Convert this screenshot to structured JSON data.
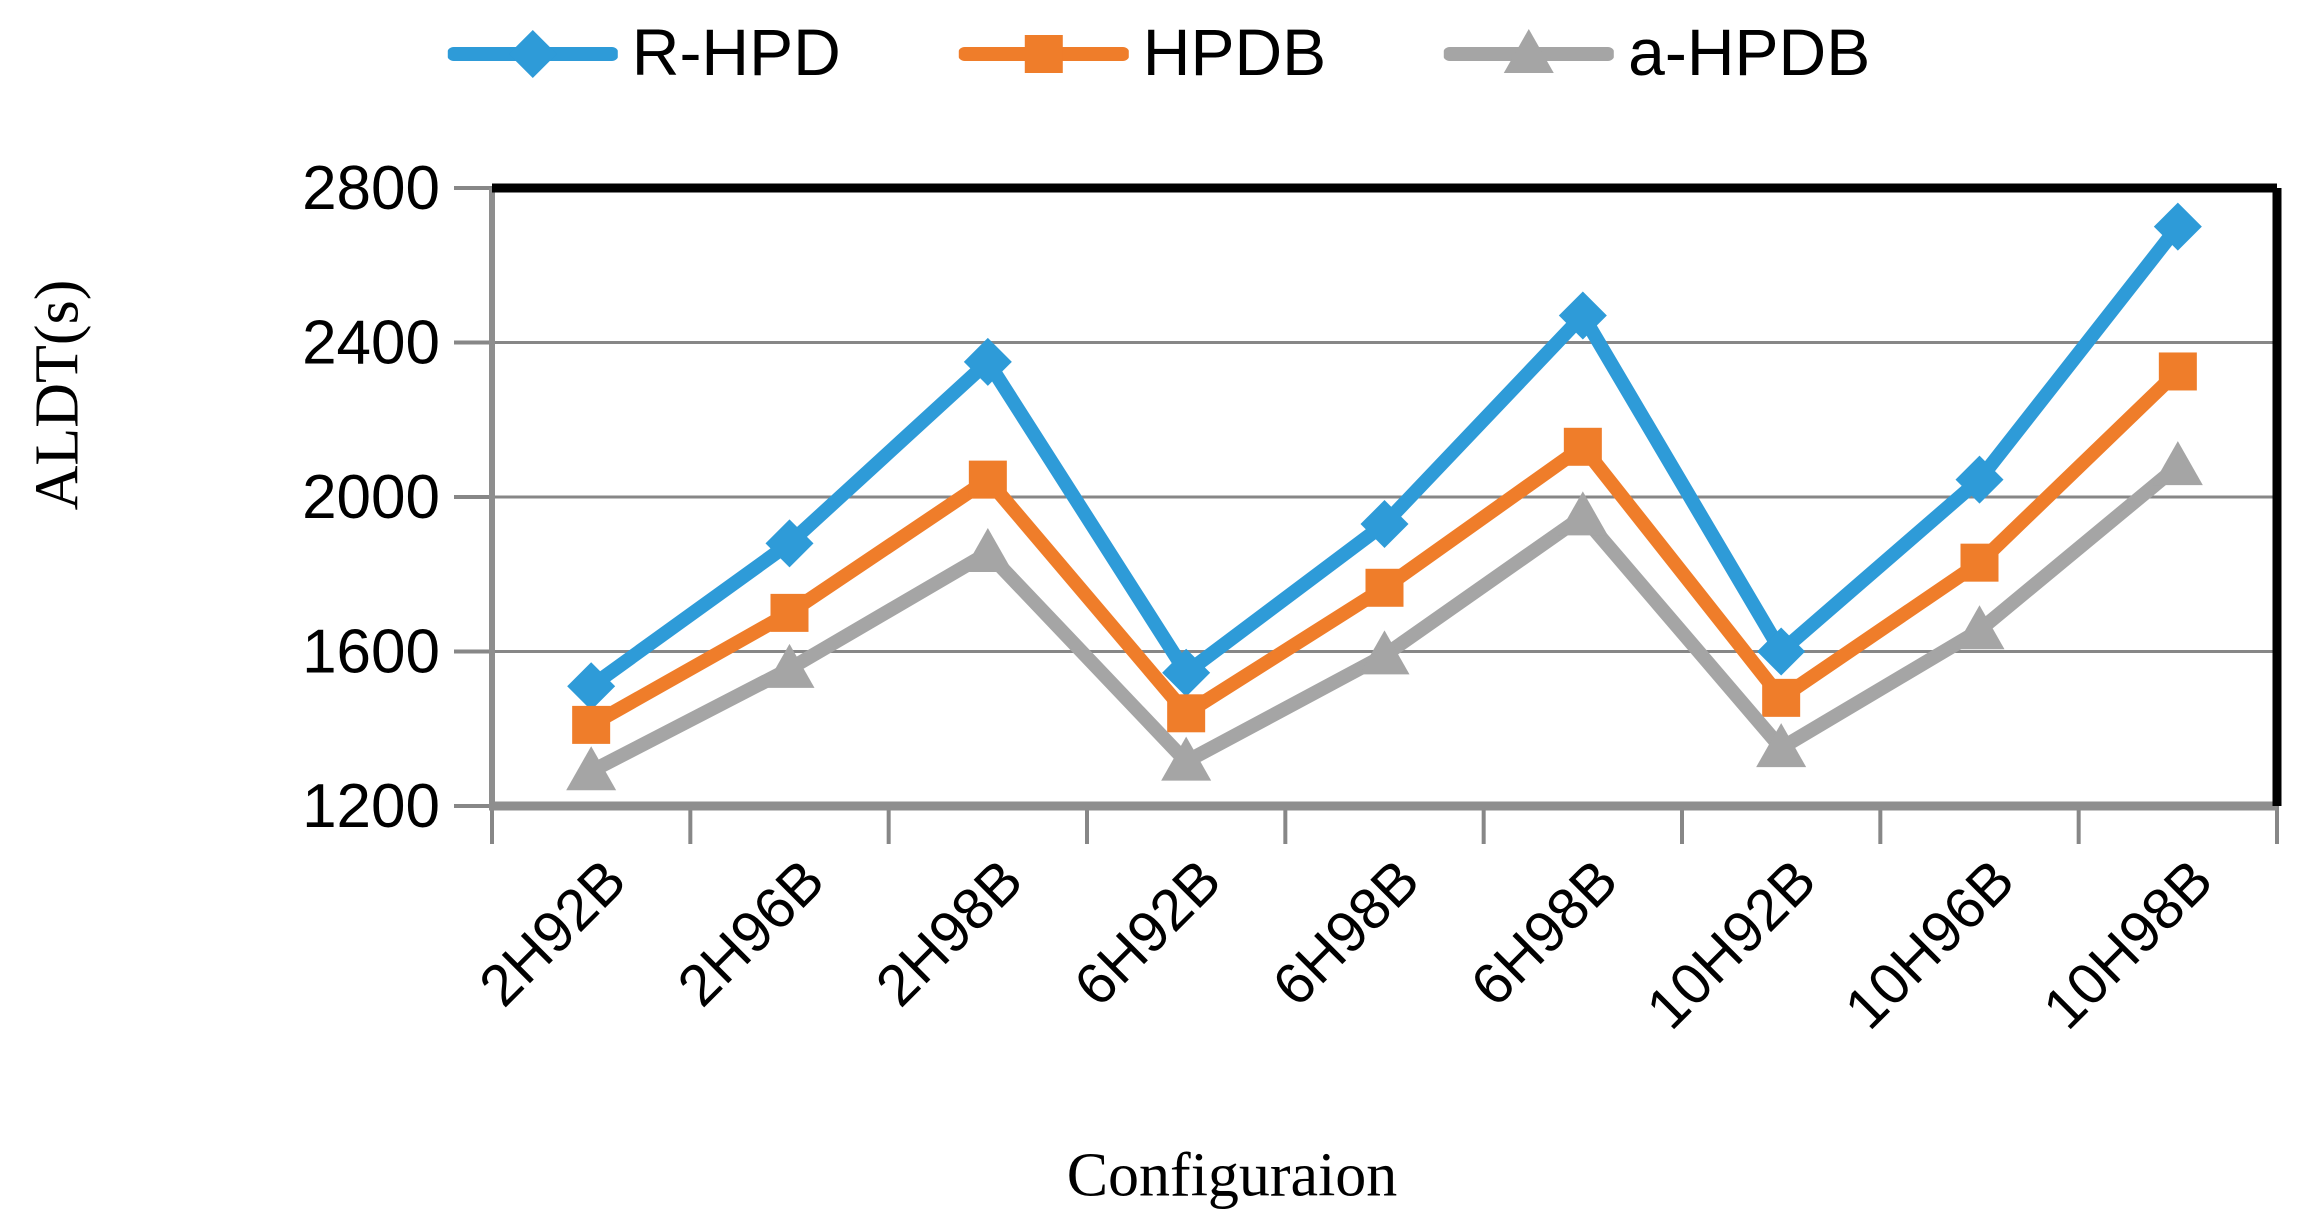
{
  "chart_data": {
    "type": "line",
    "title": "",
    "xlabel": "Configuraion",
    "ylabel": "ALDT(s)",
    "categories": [
      "2H92B",
      "2H96B",
      "2H98B",
      "6H92B",
      "6H98B",
      "6H98B",
      "10H92B",
      "10H96B",
      "10H98B"
    ],
    "series": [
      {
        "name": "R-HPD",
        "marker": "diamond",
        "color": "#2E9BD8",
        "values": [
          1510,
          1880,
          2350,
          1545,
          1930,
          2470,
          1600,
          2045,
          2700
        ]
      },
      {
        "name": "HPDB",
        "marker": "square",
        "color": "#EF7D2A",
        "values": [
          1410,
          1700,
          2045,
          1440,
          1765,
          2130,
          1480,
          1830,
          2325
        ]
      },
      {
        "name": "a-HPDB",
        "marker": "triangle",
        "color": "#A5A5A5",
        "values": [
          1290,
          1555,
          1855,
          1315,
          1590,
          1950,
          1350,
          1655,
          2080
        ]
      }
    ],
    "ylim": [
      1200,
      2800
    ],
    "yticks": [
      2800,
      2400,
      2000,
      1600,
      1200
    ],
    "grid": "horizontal-only",
    "legend_position": "top",
    "x_tick_label_rotation_deg": -45
  },
  "colors": {
    "gridline": "#878787",
    "axis": "#8E8E8E",
    "plot_border": "#000000",
    "text": "#000000",
    "background": "#FFFFFF"
  }
}
